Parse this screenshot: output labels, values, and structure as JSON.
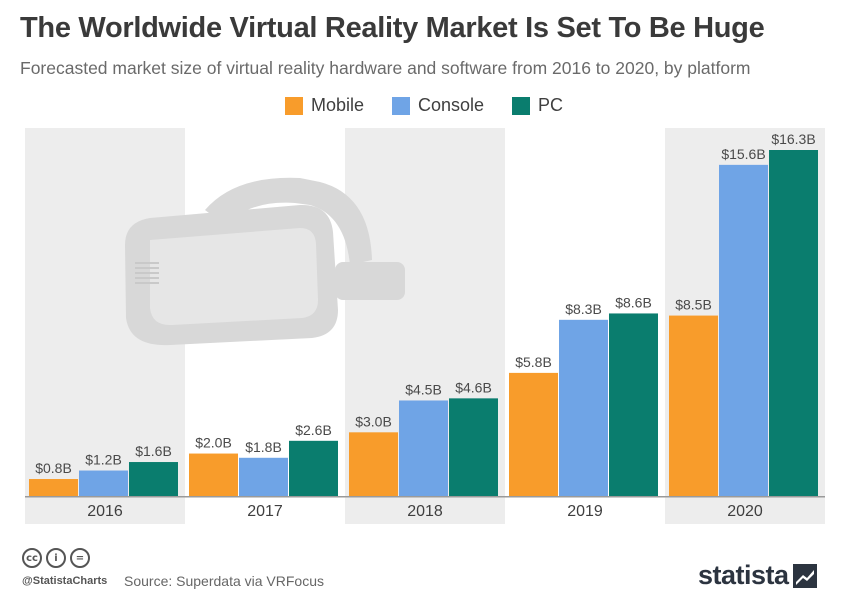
{
  "header": {
    "title": "The Worldwide Virtual Reality Market Is Set To Be Huge",
    "subtitle": "Forecasted market size of virtual reality hardware and software from 2016 to 2020, by platform"
  },
  "legend": [
    {
      "label": "Mobile",
      "color": "#f89c2b"
    },
    {
      "label": "Console",
      "color": "#6fa4e6"
    },
    {
      "label": "PC",
      "color": "#0a7d6e"
    }
  ],
  "chart_data": {
    "type": "bar",
    "categories": [
      "2016",
      "2017",
      "2018",
      "2019",
      "2020"
    ],
    "series": [
      {
        "name": "Mobile",
        "color": "#f89c2b",
        "values": [
          0.8,
          2.0,
          3.0,
          5.8,
          8.5
        ],
        "labels": [
          "$0.8B",
          "$2.0B",
          "$3.0B",
          "$5.8B",
          "$8.5B"
        ]
      },
      {
        "name": "Console",
        "color": "#6fa4e6",
        "values": [
          1.2,
          1.8,
          4.5,
          8.3,
          15.6
        ],
        "labels": [
          "$1.2B",
          "$1.8B",
          "$4.5B",
          "$8.3B",
          "$15.6B"
        ]
      },
      {
        "name": "PC",
        "color": "#0a7d6e",
        "values": [
          1.6,
          2.6,
          4.6,
          8.6,
          16.3
        ],
        "labels": [
          "$1.6B",
          "$2.6B",
          "$4.6B",
          "$8.6B",
          "$16.3B"
        ]
      }
    ],
    "ylim": [
      0,
      16.3
    ],
    "xlabel": "",
    "ylabel": "",
    "legend_position": "top-center",
    "grid": false
  },
  "footer": {
    "handle": "@StatistaCharts",
    "source": "Source: Superdata via VRFocus",
    "brand": "statista",
    "cc_icons": [
      "cc",
      "i",
      "="
    ]
  }
}
